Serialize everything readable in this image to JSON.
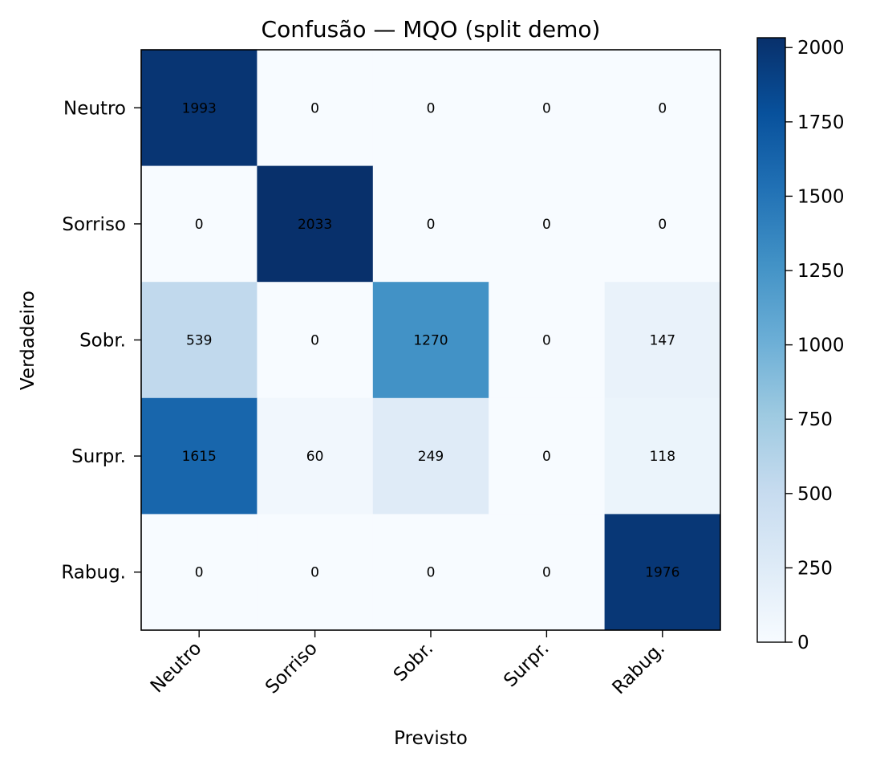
{
  "chart_data": {
    "type": "heatmap",
    "title": "Confusão — MQO (split demo)",
    "xlabel": "Previsto",
    "ylabel": "Verdadeiro",
    "x_categories": [
      "Neutro",
      "Sorriso",
      "Sobr.",
      "Surpr.",
      "Rabug."
    ],
    "y_categories": [
      "Neutro",
      "Sorriso",
      "Sobr.",
      "Surpr.",
      "Rabug."
    ],
    "values": [
      [
        1993,
        0,
        0,
        0,
        0
      ],
      [
        0,
        2033,
        0,
        0,
        0
      ],
      [
        539,
        0,
        1270,
        0,
        147
      ],
      [
        1615,
        60,
        249,
        0,
        118
      ],
      [
        0,
        0,
        0,
        0,
        1976
      ]
    ],
    "colorbar": {
      "range": [
        0,
        2033
      ],
      "ticks": [
        0,
        250,
        500,
        750,
        1000,
        1250,
        1500,
        1750,
        2000
      ]
    },
    "colormap": "Blues",
    "grid": false
  }
}
